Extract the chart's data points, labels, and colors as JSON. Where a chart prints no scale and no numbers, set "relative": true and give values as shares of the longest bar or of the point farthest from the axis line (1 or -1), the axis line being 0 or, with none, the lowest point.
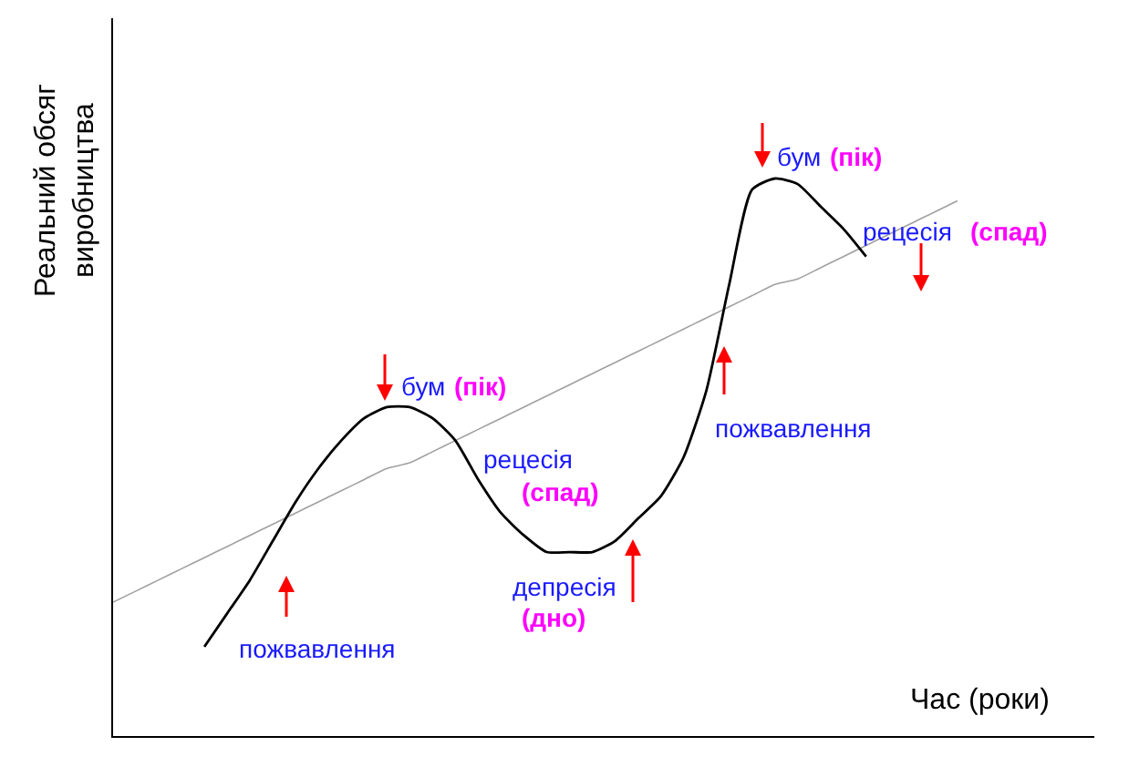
{
  "chart_data": {
    "type": "line",
    "relative": true,
    "xlabel": "Час (роки)",
    "ylabel": "Реальний обсяг\nвиробництва",
    "categories": [
      null,
      null,
      null,
      null,
      null,
      null,
      null,
      null,
      null,
      null,
      null,
      null,
      null,
      null,
      null,
      null,
      null,
      null,
      null,
      null,
      null,
      null,
      null,
      null,
      null,
      null,
      null,
      null,
      null,
      null,
      null,
      null,
      null,
      null,
      null,
      null,
      null,
      null,
      null,
      null,
      null,
      null,
      null,
      null
    ],
    "series": [
      {
        "color": "#a0a0a0",
        "values": [
          0.24,
          0.26,
          0.28,
          0.3,
          0.32,
          0.34,
          0.36,
          0.38,
          0.4,
          0.42,
          0.44,
          0.46,
          0.48,
          0.49,
          0.51,
          0.53,
          0.55,
          0.57,
          0.59,
          0.61,
          0.63,
          0.65,
          0.67,
          0.69,
          0.71,
          0.73,
          0.75,
          0.77,
          0.79,
          0.81,
          0.82,
          0.84,
          0.86,
          0.88,
          0.9,
          0.92,
          0.94,
          0.96,
          null,
          null,
          null,
          null,
          null,
          null
        ]
      },
      {
        "color": "#000000",
        "values": [
          null,
          null,
          null,
          null,
          0.16,
          0.22,
          0.28,
          0.35,
          0.42,
          0.48,
          0.53,
          0.57,
          0.59,
          0.59,
          0.57,
          0.53,
          0.46,
          0.4,
          0.36,
          0.33,
          0.33,
          0.33,
          0.35,
          0.39,
          0.43,
          0.5,
          0.62,
          0.81,
          0.98,
          1,
          0.99,
          0.95,
          0.91,
          0.86,
          null,
          null,
          null,
          null,
          null,
          null,
          null,
          null,
          null,
          null
        ]
      }
    ],
    "annotations": [
      "бум",
      "(пік)",
      "рецесія",
      "(спад)",
      "депресія",
      "(дно)",
      "пожвавлення",
      "пожвавлення",
      "бум",
      "(пік)",
      "рецесія",
      "(спад)"
    ]
  }
}
